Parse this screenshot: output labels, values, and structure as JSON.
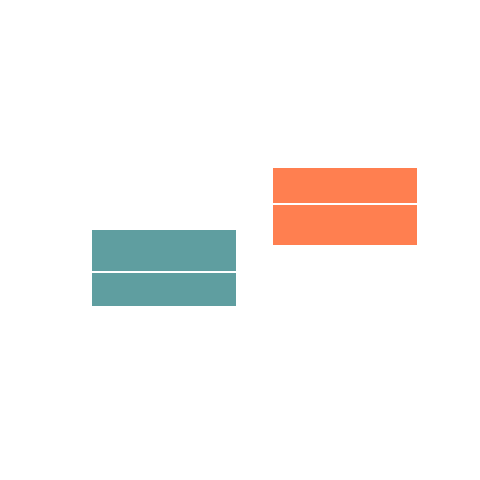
{
  "blocks": [
    {
      "name": "teal-block",
      "color": "#5f9ea0"
    },
    {
      "name": "orange-block",
      "color": "#ff7f50"
    }
  ]
}
